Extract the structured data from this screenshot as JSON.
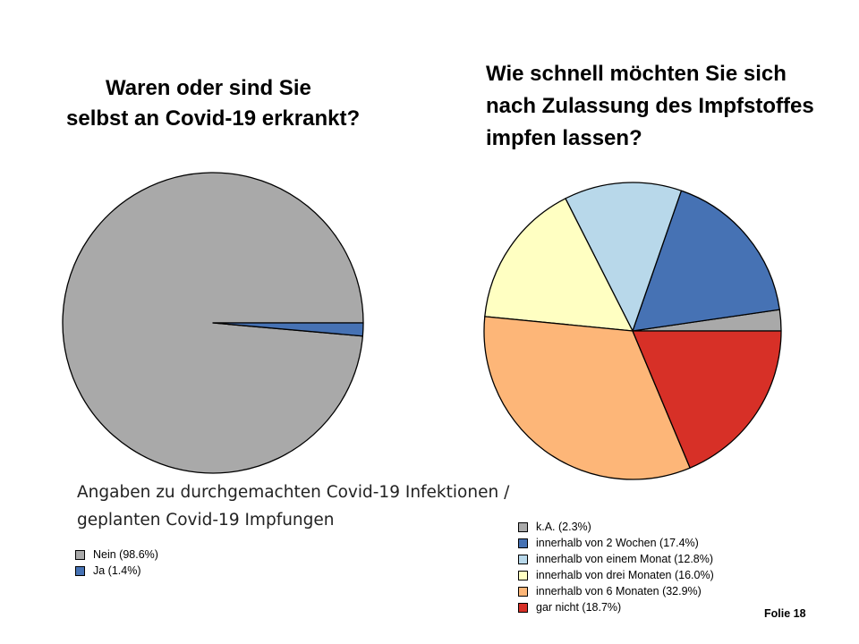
{
  "slide": {
    "caption": [
      "Angaben zu durchgemachten Covid-19 Infektionen /",
      "geplanten Covid-19 Impfungen"
    ],
    "footer": "Folie 18"
  },
  "chart_data": [
    {
      "type": "pie",
      "title": [
        "Waren oder sind Sie",
        "selbst an Covid-19 erkrankt?"
      ],
      "legend_position": "bottom-left",
      "slices": [
        {
          "label": "Nein (98.6%)",
          "value": 98.6,
          "color": "#a9a9a9"
        },
        {
          "label": "Ja (1.4%)",
          "value": 1.4,
          "color": "#4672b4"
        }
      ]
    },
    {
      "type": "pie",
      "title": [
        "Wie schnell möchten Sie sich",
        "nach Zulassung des Impfstoffes",
        "impfen lassen?"
      ],
      "legend_position": "bottom-right",
      "slices": [
        {
          "label": "k.A. (2.3%)",
          "value": 2.3,
          "color": "#a9a9a9"
        },
        {
          "label": "innerhalb von 2 Wochen (17.4%)",
          "value": 17.4,
          "color": "#4672b4"
        },
        {
          "label": "innerhalb von einem Monat (12.8%)",
          "value": 12.8,
          "color": "#b8d8ea"
        },
        {
          "label": "innerhalb von drei Monaten (16.0%)",
          "value": 16.0,
          "color": "#ffffc2"
        },
        {
          "label": "innerhalb von 6 Monaten (32.9%)",
          "value": 32.9,
          "color": "#fdb678"
        },
        {
          "label": "gar nicht (18.7%)",
          "value": 18.7,
          "color": "#d73027"
        }
      ]
    }
  ]
}
